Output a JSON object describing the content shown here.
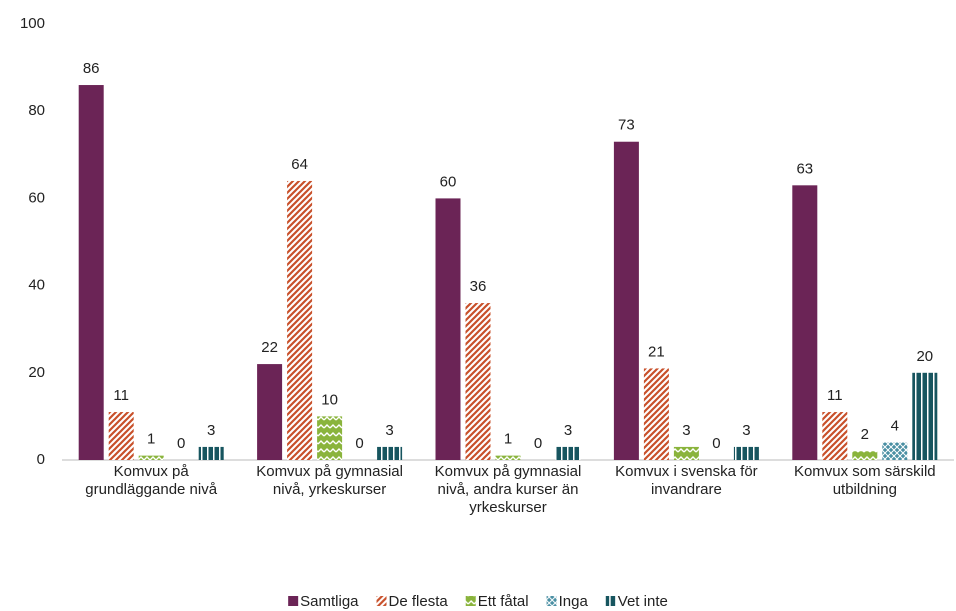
{
  "chart_data": {
    "type": "bar",
    "categories": [
      "Komvux på grundläggande nivå",
      "Komvux på gymnasial nivå, yrkeskurser",
      "Komvux på gymnasial nivå, andra kurser än yrkeskurser",
      "Komvux i svenska för invandrare",
      "Komvux som särskild utbildning"
    ],
    "series": [
      {
        "name": "Samtliga",
        "color": "#6b2456",
        "pattern": "solid",
        "values": [
          86,
          22,
          60,
          73,
          63
        ]
      },
      {
        "name": "De flesta",
        "color": "#c8502a",
        "pattern": "diagonal-stripes",
        "values": [
          11,
          64,
          36,
          21,
          11
        ]
      },
      {
        "name": "Ett fåtal",
        "color": "#8ab43c",
        "pattern": "zigzag",
        "values": [
          1,
          10,
          1,
          3,
          2
        ]
      },
      {
        "name": "Inga",
        "color": "#4a8fa3",
        "pattern": "crosshatch",
        "values": [
          0,
          0,
          0,
          0,
          4
        ]
      },
      {
        "name": "Vet inte",
        "color": "#17555f",
        "pattern": "vertical-stripes",
        "values": [
          3,
          3,
          3,
          3,
          20
        ]
      }
    ],
    "ylim": [
      0,
      100
    ],
    "yticks": [
      0,
      20,
      40,
      60,
      80,
      100
    ],
    "grid": false,
    "legend": "bottom"
  }
}
